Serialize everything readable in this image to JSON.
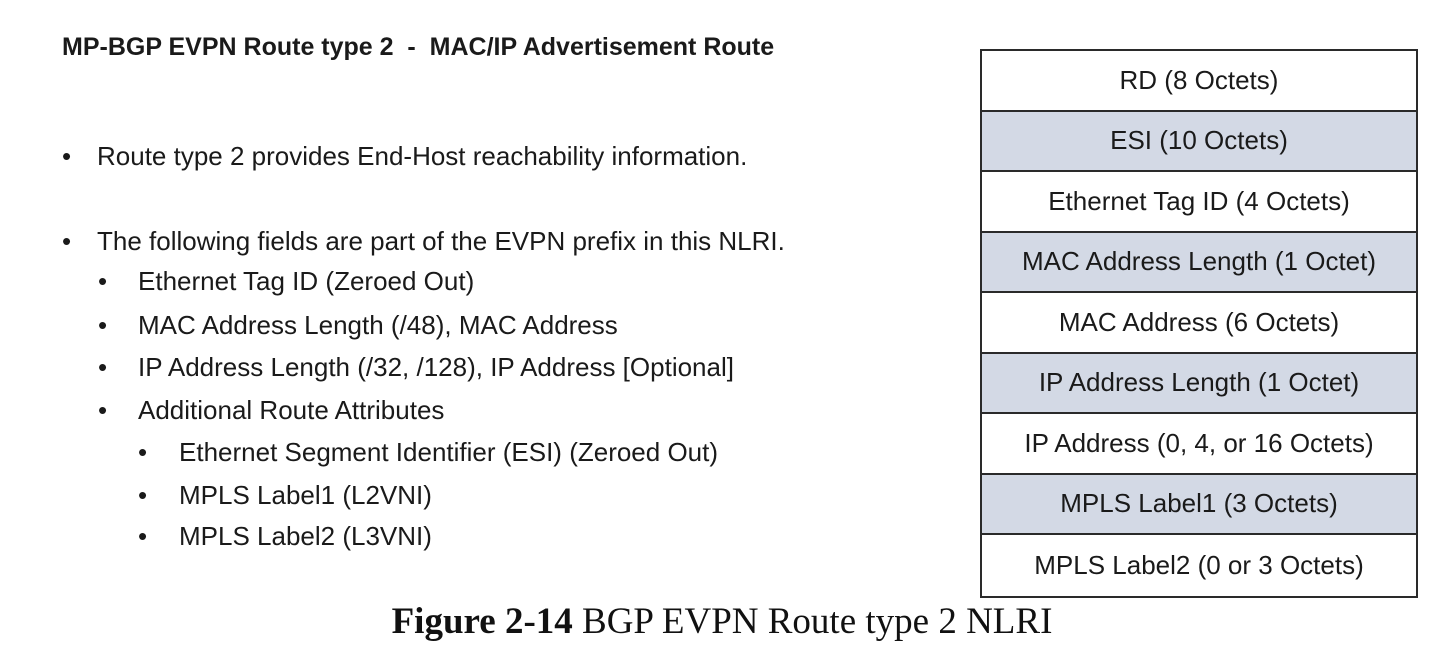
{
  "title": "MP-BGP EVPN Route type 2  -  MAC/IP Advertisement Route",
  "bullet_symbol": "•",
  "bullets": [
    "Route type 2 provides End-Host reachability information.",
    "The following fields are part of the EVPN prefix in this NLRI.",
    "Ethernet Tag ID (Zeroed Out)",
    "MAC Address Length (/48), MAC Address",
    "IP Address Length (/32, /128), IP Address [Optional]",
    "Additional Route Attributes",
    "Ethernet Segment Identifier (ESI) (Zeroed Out)",
    "MPLS Label1 (L2VNI)",
    "MPLS Label2 (L3VNI)"
  ],
  "nlri_fields": [
    "RD (8 Octets)",
    "ESI (10 Octets)",
    "Ethernet Tag ID (4 Octets)",
    "MAC Address Length (1 Octet)",
    "MAC Address (6 Octets)",
    "IP Address Length (1 Octet)",
    "IP Address (0, 4, or 16 Octets)",
    "MPLS Label1 (3 Octets)",
    "MPLS Label2 (0 or 3 Octets)"
  ],
  "caption": {
    "label": "Figure 2-14",
    "text": " BGP EVPN Route type 2 NLRI"
  },
  "colors": {
    "shaded_row": "#d3d9e5",
    "border": "#2a2a2a"
  }
}
